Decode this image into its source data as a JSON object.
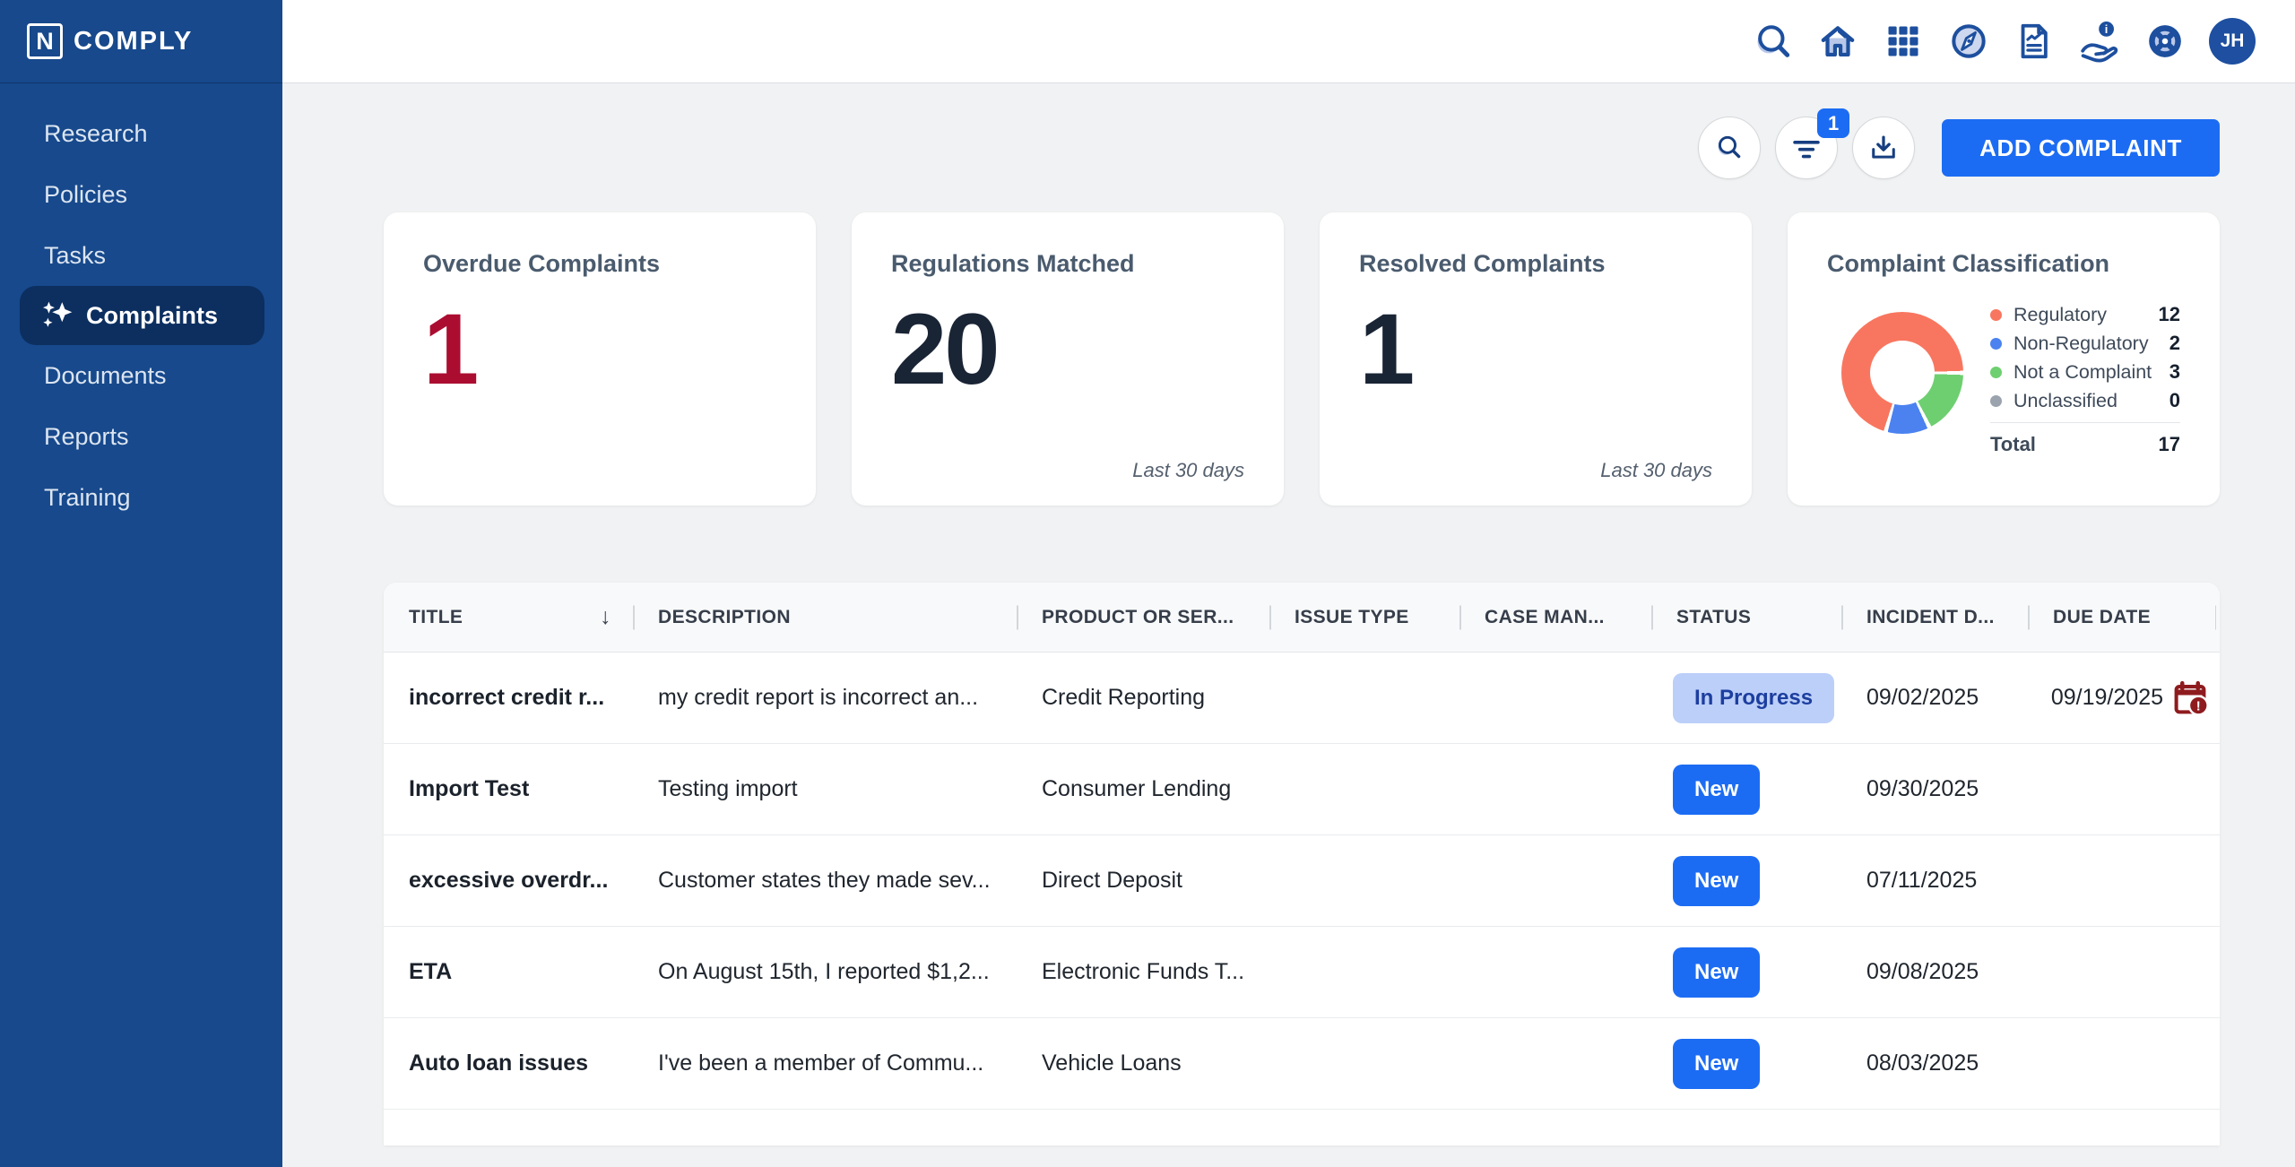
{
  "brand": {
    "logo_letter": "N",
    "name": "COMPLY"
  },
  "sidebar": {
    "items": [
      {
        "label": "Research",
        "active": false
      },
      {
        "label": "Policies",
        "active": false
      },
      {
        "label": "Tasks",
        "active": false
      },
      {
        "label": "Complaints",
        "active": true
      },
      {
        "label": "Documents",
        "active": false
      },
      {
        "label": "Reports",
        "active": false
      },
      {
        "label": "Training",
        "active": false
      }
    ]
  },
  "topbar": {
    "icons": [
      "search",
      "home",
      "apps-grid",
      "compass",
      "report-document",
      "assist-hand-info",
      "help-wheel"
    ],
    "assist_badge": "i",
    "avatar_initials": "JH"
  },
  "actions": {
    "search_button": "search",
    "filter_button": "filter",
    "filter_badge_count": "1",
    "download_button": "download",
    "add_button_label": "ADD COMPLAINT"
  },
  "cards": [
    {
      "title": "Overdue Complaints",
      "value": "1",
      "value_color": "#ab0d31",
      "footnote": ""
    },
    {
      "title": "Regulations Matched",
      "value": "20",
      "value_color": "#192435",
      "footnote": "Last 30 days"
    },
    {
      "title": "Resolved Complaints",
      "value": "1",
      "value_color": "#192435",
      "footnote": "Last 30 days"
    }
  ],
  "classification": {
    "title": "Complaint Classification",
    "legend": [
      {
        "label": "Regulatory",
        "value": "12",
        "color": "#f8765f"
      },
      {
        "label": "Non-Regulatory",
        "value": "2",
        "color": "#4b82f0"
      },
      {
        "label": "Not a Complaint",
        "value": "3",
        "color": "#6ecf70"
      },
      {
        "label": "Unclassified",
        "value": "0",
        "color": "#9aa3ae"
      }
    ],
    "total_label": "Total",
    "total_value": "17",
    "chart_data": {
      "type": "pie",
      "subtype": "donut",
      "title": "Complaint Classification",
      "categories": [
        "Regulatory",
        "Non-Regulatory",
        "Not a Complaint",
        "Unclassified"
      ],
      "values": [
        12,
        2,
        3,
        0
      ],
      "colors": [
        "#f8765f",
        "#4b82f0",
        "#6ecf70",
        "#9aa3ae"
      ],
      "total": 17,
      "legend_position": "right",
      "draw_order_from_3_oclock_clockwise": [
        {
          "name": "Not a Complaint",
          "value": 3,
          "color": "#6ecf70"
        },
        {
          "name": "Non-Regulatory",
          "value": 2,
          "color": "#4b82f0"
        },
        {
          "name": "Regulatory",
          "value": 12,
          "color": "#f8765f"
        }
      ]
    }
  },
  "table": {
    "columns": [
      {
        "label": "TITLE",
        "sorted": "desc"
      },
      {
        "label": "DESCRIPTION",
        "sorted": ""
      },
      {
        "label": "PRODUCT OR SER...",
        "sorted": ""
      },
      {
        "label": "ISSUE TYPE",
        "sorted": ""
      },
      {
        "label": "CASE MAN...",
        "sorted": ""
      },
      {
        "label": "STATUS",
        "sorted": ""
      },
      {
        "label": "INCIDENT D...",
        "sorted": ""
      },
      {
        "label": "DUE DATE",
        "sorted": ""
      }
    ],
    "sort_icon": "↓",
    "rows": [
      {
        "title": "incorrect credit r...",
        "description": "my credit report is incorrect an...",
        "product": "Credit Reporting",
        "issue_type": "",
        "case_manager": "",
        "status": "In Progress",
        "status_type": "in-progress",
        "incident_date": "09/02/2025",
        "due_date": "09/19/2025",
        "overdue": true
      },
      {
        "title": "Import Test",
        "description": "Testing import",
        "product": "Consumer Lending",
        "issue_type": "",
        "case_manager": "",
        "status": "New",
        "status_type": "new",
        "incident_date": "09/30/2025",
        "due_date": "",
        "overdue": false
      },
      {
        "title": "excessive overdr...",
        "description": "Customer states they made sev...",
        "product": "Direct Deposit",
        "issue_type": "",
        "case_manager": "",
        "status": "New",
        "status_type": "new",
        "incident_date": "07/11/2025",
        "due_date": "",
        "overdue": false
      },
      {
        "title": "ETA",
        "description": "On August 15th, I reported $1,2...",
        "product": "Electronic Funds T...",
        "issue_type": "",
        "case_manager": "",
        "status": "New",
        "status_type": "new",
        "incident_date": "09/08/2025",
        "due_date": "",
        "overdue": false
      },
      {
        "title": "Auto loan issues",
        "description": "I've been a member of Commu...",
        "product": "Vehicle Loans",
        "issue_type": "",
        "case_manager": "",
        "status": "New",
        "status_type": "new",
        "incident_date": "08/03/2025",
        "due_date": "",
        "overdue": false
      }
    ]
  },
  "colors": {
    "sidebar": "#17498c",
    "sidebar_active": "#0c2f60",
    "accent_blue": "#1c6cf3",
    "danger_red": "#ab0d31",
    "calendar_red": "#8e1b1e",
    "in_progress_bg": "#bccff9",
    "in_progress_text": "#1c3e9f"
  }
}
